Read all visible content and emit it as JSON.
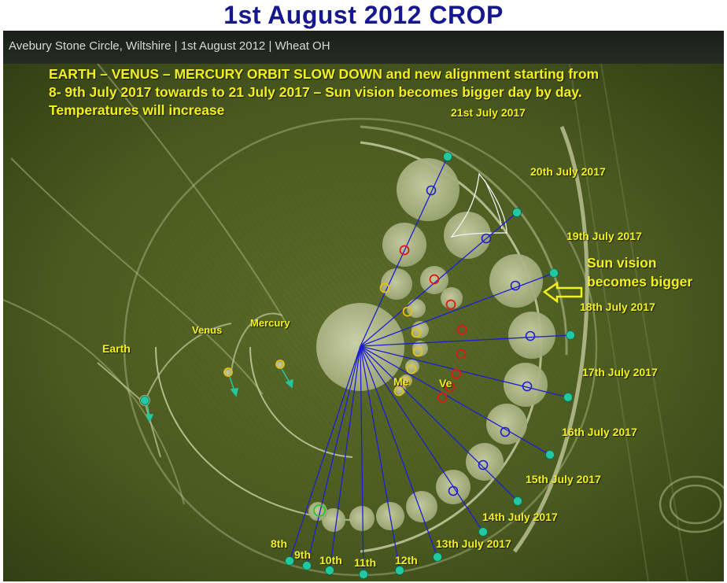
{
  "title": "1st August 2012 CROP",
  "caption": "Avebury Stone Circle, Wiltshire | 1st August 2012 | Wheat OH",
  "annotation": {
    "line1": "EARTH – VENUS – MERCURY ORBIT SLOW DOWN  and new alignment starting  from",
    "line2": "8- 9th July 2017 towards to 21 July 2017 – Sun vision becomes bigger day by day.",
    "line3": "Temperatures will increase"
  },
  "sun_vision": {
    "line1": "Sun vision",
    "line2": "becomes bigger"
  },
  "planets": {
    "earth": "Earth",
    "venus": "Venus",
    "mercury": "Mercury",
    "me": "Me",
    "ve": "Ve"
  },
  "dates": [
    "21st July 2017",
    "20th July 2017",
    "19th July 2017",
    "18th July 2017",
    "17th July 2017",
    "16th July 2017",
    "15th July 2017",
    "14th July 2017",
    "13th July 2017"
  ],
  "early_dates": [
    "8th",
    "9th",
    "10th",
    "11th",
    "12th"
  ],
  "colors": {
    "title": "#16188f",
    "label_yellow": "#f2f01e",
    "line_blue": "#1d1fd0",
    "marker_teal": "#22c9a0",
    "circle_red": "#e01818",
    "circle_yellow": "#e8c018",
    "circle_green": "#28c828"
  }
}
